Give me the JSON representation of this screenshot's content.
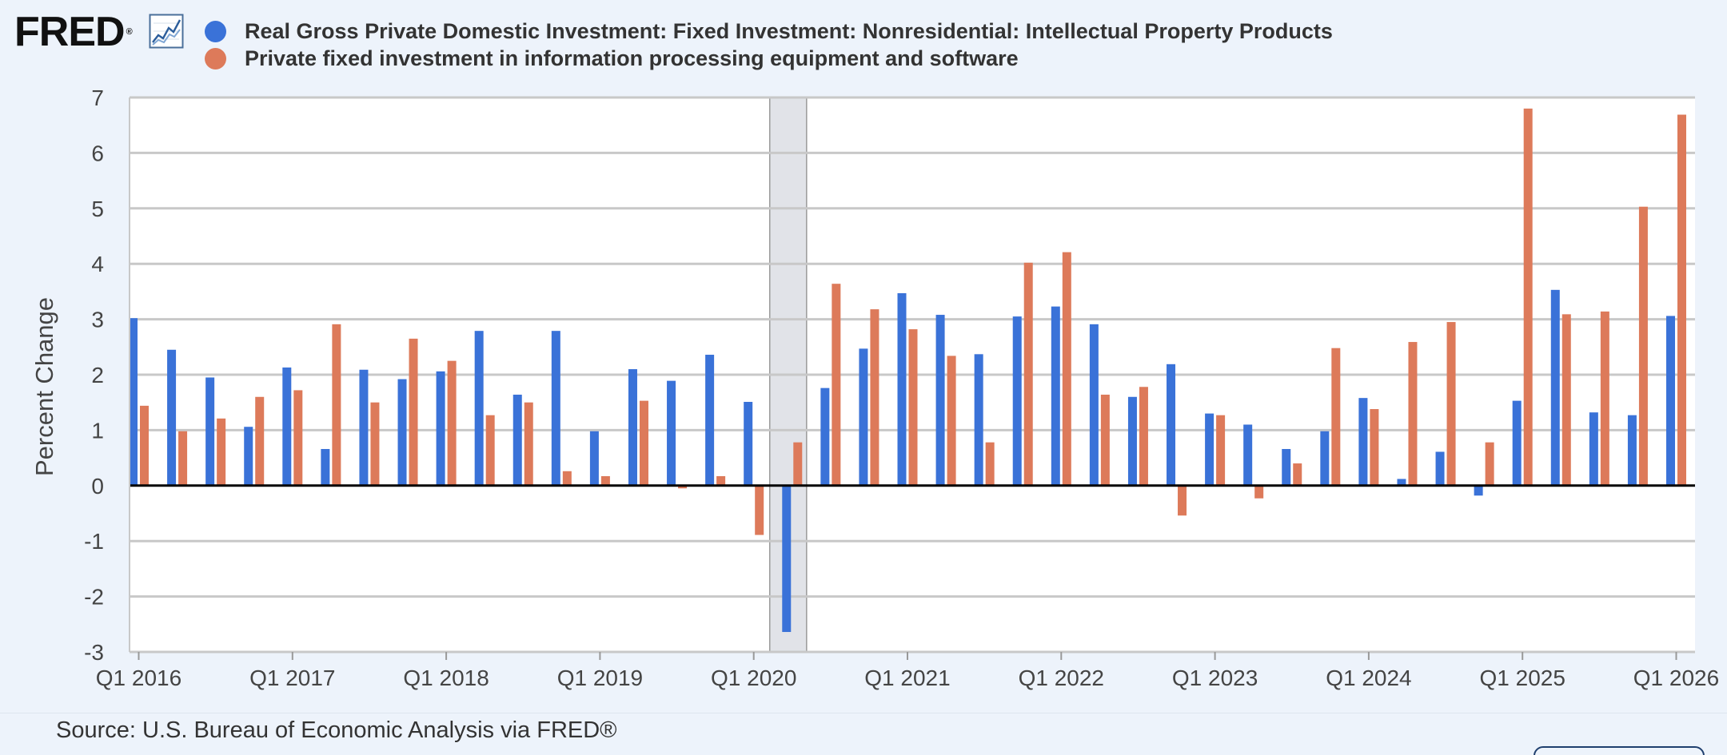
{
  "logo": {
    "text": "FRED",
    "reg": "®",
    "graph_icon": "line-chart-icon"
  },
  "source": "Source: U.S. Bureau of Economic Analysis via FRED®",
  "colors": {
    "background": "#edf3fb",
    "plot_background": "#ffffff",
    "grid": "#c8c8c8",
    "zero_line": "#000000",
    "recession": "#e1e3e8"
  },
  "chart_data": {
    "type": "bar",
    "title": "",
    "xlabel": "",
    "ylabel": "Percent Change",
    "ylim": [
      -3,
      7
    ],
    "yticks": [
      "7",
      "6",
      "5",
      "4",
      "3",
      "2",
      "1",
      "0",
      "-1",
      "-2",
      "-3"
    ],
    "grid": true,
    "legend_position": "top-left",
    "x_tick_labels": [
      "Q1 2016",
      "Q1 2017",
      "Q1 2018",
      "Q1 2019",
      "Q1 2020",
      "Q1 2021",
      "Q1 2022",
      "Q1 2023",
      "Q1 2024",
      "Q1 2025",
      "Q1 2026"
    ],
    "categories": [
      "Q1 2016",
      "Q2 2016",
      "Q3 2016",
      "Q4 2016",
      "Q1 2017",
      "Q2 2017",
      "Q3 2017",
      "Q4 2017",
      "Q1 2018",
      "Q2 2018",
      "Q3 2018",
      "Q4 2018",
      "Q1 2019",
      "Q2 2019",
      "Q3 2019",
      "Q4 2019",
      "Q1 2020",
      "Q2 2020",
      "Q3 2020",
      "Q4 2020",
      "Q1 2021",
      "Q2 2021",
      "Q3 2021",
      "Q4 2021",
      "Q1 2022",
      "Q2 2022",
      "Q3 2022",
      "Q4 2022",
      "Q1 2023",
      "Q2 2023",
      "Q3 2023",
      "Q4 2023",
      "Q1 2024",
      "Q2 2024",
      "Q3 2024",
      "Q4 2024",
      "Q1 2025",
      "Q2 2025",
      "Q3 2025",
      "Q4 2025",
      "Q1 2026"
    ],
    "recessions": [
      {
        "start": "Q1 2020",
        "end": "Q2 2020"
      }
    ],
    "series": [
      {
        "name": "Real Gross Private Domestic Investment: Fixed Investment: Nonresidential: Intellectual Property Products",
        "color": "#3a72d8",
        "values": [
          3.02,
          2.45,
          1.95,
          1.06,
          2.13,
          0.66,
          2.09,
          1.92,
          2.06,
          2.79,
          1.64,
          2.79,
          0.98,
          2.1,
          1.89,
          2.36,
          1.51,
          -2.64,
          1.76,
          2.47,
          3.47,
          3.08,
          2.37,
          3.05,
          3.23,
          2.91,
          1.6,
          2.19,
          1.3,
          1.1,
          0.66,
          0.98,
          1.58,
          0.12,
          0.61,
          -0.18,
          1.53,
          3.53,
          1.32,
          1.27,
          3.06
        ]
      },
      {
        "name": "Private fixed investment in information processing equipment and software",
        "color": "#dd7a5a",
        "values": [
          1.44,
          0.98,
          1.21,
          1.6,
          1.72,
          2.91,
          1.5,
          2.65,
          2.25,
          1.27,
          1.5,
          0.26,
          0.17,
          1.53,
          -0.05,
          0.17,
          -0.89,
          0.78,
          3.64,
          3.18,
          2.82,
          2.34,
          0.78,
          4.02,
          4.21,
          1.64,
          1.78,
          -0.54,
          1.27,
          -0.23,
          0.4,
          2.48,
          1.38,
          2.59,
          2.95,
          0.78,
          6.8,
          3.09,
          3.14,
          5.03,
          6.69
        ]
      }
    ]
  }
}
